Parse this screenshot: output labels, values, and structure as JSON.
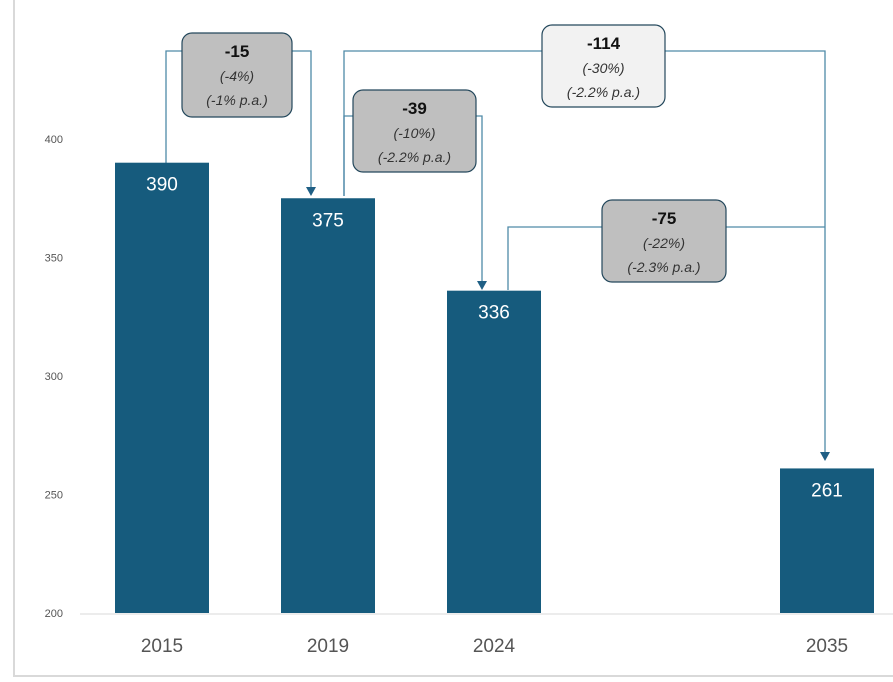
{
  "chart_data": {
    "type": "bar",
    "title": "",
    "xlabel": "",
    "ylabel": "",
    "categories": [
      "2015",
      "2019",
      "2024",
      "2035"
    ],
    "values": [
      390,
      375,
      336,
      261
    ],
    "data_labels": [
      "390",
      "375",
      "336",
      "261"
    ],
    "ylim": [
      200,
      410
    ],
    "yticks": [
      {
        "value": 200,
        "label": "200"
      },
      {
        "value": 250,
        "label": "250"
      },
      {
        "value": 300,
        "label": "300"
      },
      {
        "value": 350,
        "label": "350"
      },
      {
        "value": 400,
        "label": "400"
      }
    ],
    "grid": false,
    "legend": "none",
    "bar_color": "#165b7d",
    "annotations": [
      {
        "from": "2015",
        "to": "2019",
        "change": "-15",
        "pct": "(-4%)",
        "cagr": "(-1% p.a.)",
        "box_color": "#bfbfbf"
      },
      {
        "from": "2019",
        "to": "2024",
        "change": "-39",
        "pct": "(-10%)",
        "cagr": "(-2.2% p.a.)",
        "box_color": "#bfbfbf"
      },
      {
        "from": "2019",
        "to": "2035",
        "change": "-114",
        "pct": "(-30%)",
        "cagr": "(-2.2% p.a.)",
        "box_color": "#f2f2f2"
      },
      {
        "from": "2024",
        "to": "2035",
        "change": "-75",
        "pct": "(-22%)",
        "cagr": "(-2.3% p.a.)",
        "box_color": "#bfbfbf"
      }
    ]
  }
}
